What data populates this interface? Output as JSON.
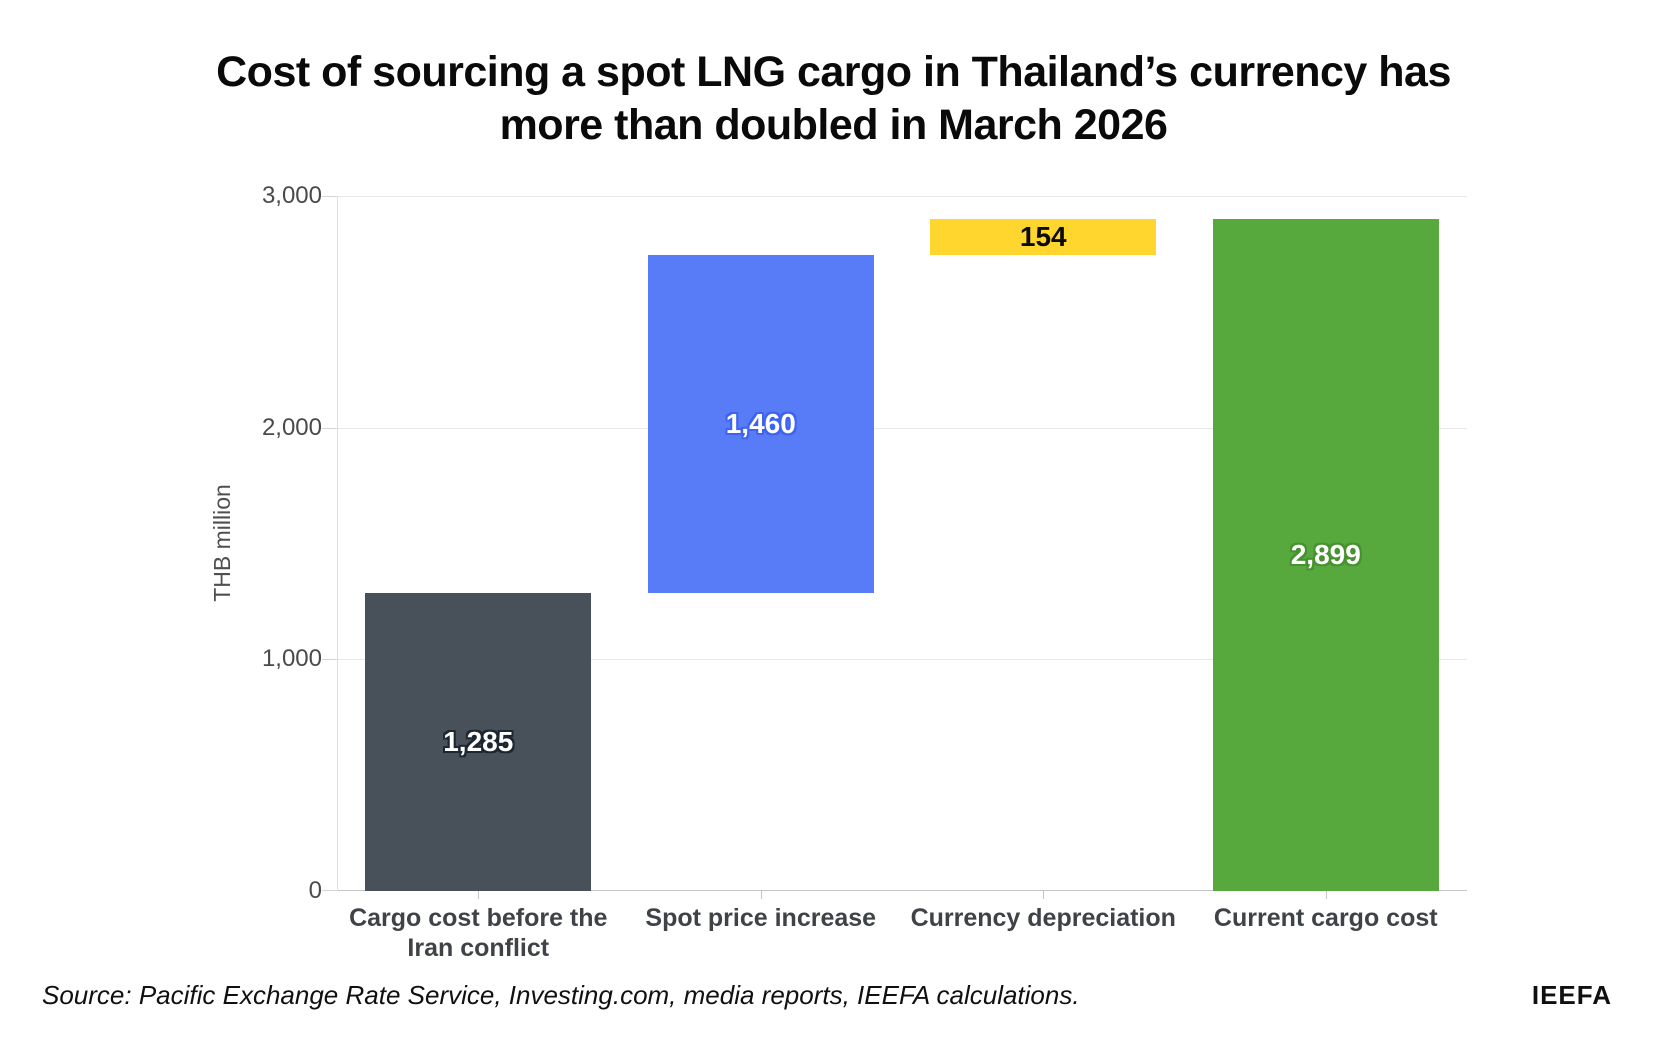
{
  "title": {
    "line1": "Cost of sourcing a spot LNG cargo in Thailand’s currency has",
    "line2": "more than doubled in March 2026"
  },
  "footer": {
    "source": "Source: Pacific Exchange Rate Service, Investing.com, media reports, IEEFA calculations.",
    "brand": "IEEFA"
  },
  "chart_data": {
    "type": "bar",
    "subtype": "waterfall",
    "title": "Cost of sourcing a spot LNG cargo in Thailand’s currency has more than doubled in March 2026",
    "xlabel": "",
    "ylabel": "THB million",
    "ylim": [
      0,
      3000
    ],
    "grid": "horizontal",
    "legend": "none",
    "yticks": [
      {
        "value": 0,
        "label": "0"
      },
      {
        "value": 1000,
        "label": "1,000"
      },
      {
        "value": 2000,
        "label": "2,000"
      },
      {
        "value": 3000,
        "label": "3,000"
      }
    ],
    "categories": [
      "Cargo cost before the Iran conflict",
      "Spot price increase",
      "Currency depreciation",
      "Current cargo cost"
    ],
    "bars": [
      {
        "category": "Cargo cost before the Iran conflict",
        "base": 0,
        "value": 1285,
        "label": "1,285",
        "color": "#485059",
        "label_color": "#ffffff",
        "halo": "#1d2630"
      },
      {
        "category": "Spot price increase",
        "base": 1285,
        "value": 1460,
        "label": "1,460",
        "color": "#587cf7",
        "label_color": "#ffffff",
        "halo": "#3e63f0"
      },
      {
        "category": "Currency depreciation",
        "base": 2745,
        "value": 154,
        "label": "154",
        "color": "#ffd62e",
        "label_color": "#0b0b0b",
        "halo": "#ffd62e"
      },
      {
        "category": "Current cargo cost",
        "base": 0,
        "value": 2899,
        "label": "2,899",
        "color": "#57a93e",
        "label_color": "#ffffff",
        "halo": "#47922f"
      }
    ]
  }
}
